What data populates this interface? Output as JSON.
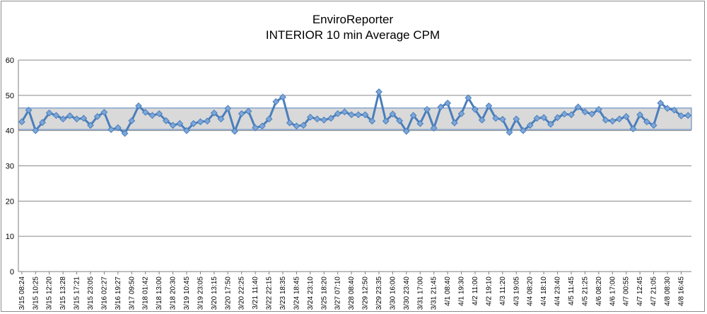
{
  "chart_data": {
    "type": "line",
    "title": "EnviroReporter",
    "subtitle": "INTERIOR 10 min Average CPM",
    "xlabel": "",
    "ylabel": "",
    "ylim": [
      0,
      60
    ],
    "y_ticks": [
      0,
      10,
      20,
      30,
      40,
      50,
      60
    ],
    "grid": true,
    "legend": "none",
    "band": {
      "low": 40.3,
      "high": 46.4
    },
    "colors": {
      "line": "#4a7ebb",
      "marker": "#7da7d9",
      "band_fill": "#d9d9d9",
      "band_stroke": "#4f81bd"
    },
    "x_tick_labels": [
      "3/15 08:24",
      "3/15 10:25",
      "3/15 12:20",
      "3/15 13:28",
      "3/15 17:21",
      "3/15 23:05",
      "3/16 02:27",
      "3/16 19:27",
      "3/17 09:50",
      "3/18 01:42",
      "3/18 13:00",
      "3/18 20:30",
      "3/19 10:45",
      "3/19 23:05",
      "3/20 13:15",
      "3/20 17:50",
      "3/20 22:25",
      "3/21 11:40",
      "3/22 22:15",
      "3/23 18:35",
      "3/24 18:45",
      "3/24 23:10",
      "3/25 18:20",
      "3/27 07:10",
      "3/28 08:40",
      "3/29 12:50",
      "3/29 23:35",
      "3/30 16:00",
      "3/30 23:40",
      "3/31 17:00",
      "3/31 21:45",
      "4/1 08:40",
      "4/1 19:30",
      "4/2 11:00",
      "4/2 19:10",
      "4/3 11:20",
      "4/3 19:05",
      "4/4 08:20",
      "4/4 18:10",
      "4/4 23:40",
      "4/5 11:45",
      "4/5 21:25",
      "4/6 08:20",
      "4/6 17:00",
      "4/7 00:55",
      "4/7 12:45",
      "4/7 21:05",
      "4/8 08:30",
      "4/8 16:45"
    ],
    "series": [
      {
        "values": [
          42.5,
          45.8,
          40.0,
          42.3,
          45.0,
          44.3,
          43.3,
          44.2,
          43.3,
          43.5,
          41.5,
          44.0,
          45.2,
          40.3,
          40.8,
          39.2,
          42.8,
          47.0,
          45.2,
          44.3,
          44.8,
          42.8,
          41.5,
          42.0,
          40.0,
          42.0,
          42.5,
          42.7,
          45.0,
          43.3,
          46.3,
          39.8,
          44.8,
          45.5,
          40.8,
          41.3,
          43.3,
          48.2,
          49.5,
          42.2,
          41.3,
          41.5,
          43.8,
          43.3,
          43.0,
          43.5,
          44.8,
          45.3,
          44.5,
          44.5,
          44.5,
          42.7,
          51.0,
          42.7,
          44.7,
          42.8,
          39.8,
          44.3,
          42.0,
          46.0,
          40.7,
          46.7,
          47.8,
          42.2,
          44.8,
          49.3,
          46.0,
          43.0,
          47.0,
          43.5,
          43.2,
          39.5,
          43.3,
          40.0,
          41.5,
          43.5,
          43.7,
          41.8,
          43.7,
          44.7,
          44.5,
          46.7,
          45.3,
          44.7,
          46.0,
          43.0,
          42.7,
          43.3,
          44.0,
          40.5,
          44.5,
          42.5,
          41.5,
          47.8,
          46.3,
          45.8,
          44.2,
          44.3
        ]
      }
    ]
  }
}
